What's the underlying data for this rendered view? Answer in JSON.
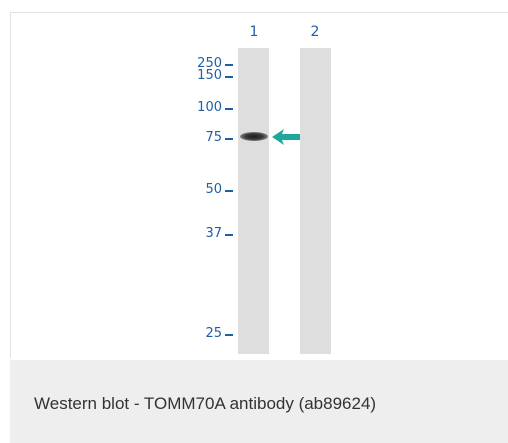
{
  "blot": {
    "lanes": [
      {
        "label": "1"
      },
      {
        "label": "2"
      }
    ],
    "markers": [
      "250",
      "150",
      "100",
      "75",
      "50",
      "37",
      "25"
    ],
    "arrow_color": "#1fa89a",
    "label_color": "#1f5fa8"
  },
  "caption": "Western blot - TOMM70A antibody (ab89624)"
}
